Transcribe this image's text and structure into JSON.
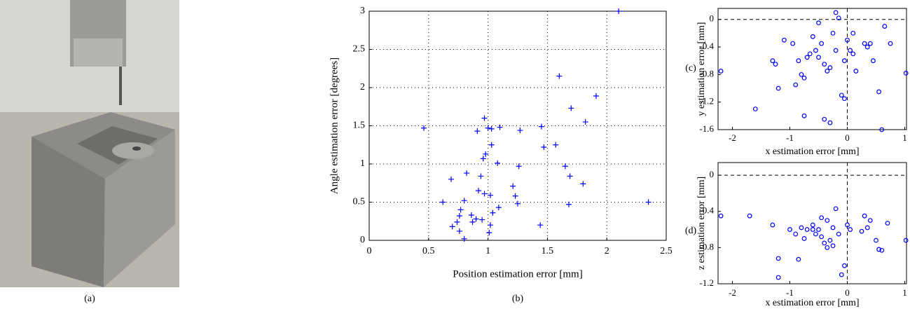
{
  "photo_caption": "(a)",
  "chart_data": [
    {
      "type": "scatter",
      "caption": "(b)",
      "xlabel": "Position estimation error [mm]",
      "ylabel": "Angle estimation error [degrees]",
      "marker": "+",
      "color": "#0000ff",
      "grid": true,
      "xlim": [
        0,
        2.5
      ],
      "ylim": [
        0,
        3
      ],
      "xticks": [
        0,
        0.5,
        1,
        1.5,
        2,
        2.5
      ],
      "yticks": [
        0,
        0.5,
        1,
        1.5,
        2,
        2.5,
        3
      ],
      "x": [
        2.1,
        0.46,
        0.97,
        0.91,
        1.0,
        1.03,
        1.1,
        1.27,
        1.45,
        1.6,
        1.91,
        1.7,
        1.82,
        1.47,
        1.57,
        1.03,
        0.98,
        0.96,
        0.82,
        0.94,
        1.08,
        1.26,
        1.65,
        1.69,
        1.8,
        1.21,
        1.23,
        1.25,
        0.69,
        0.62,
        0.8,
        0.92,
        0.97,
        1.02,
        1.68,
        2.35,
        1.09,
        1.04,
        0.9,
        0.95,
        0.86,
        0.76,
        0.77,
        0.74,
        0.7,
        0.76,
        0.87,
        1.02,
        1.01,
        1.44,
        0.8
      ],
      "values": [
        3.0,
        1.47,
        1.6,
        1.43,
        1.47,
        1.46,
        1.48,
        1.44,
        1.49,
        2.15,
        1.89,
        1.73,
        1.55,
        1.22,
        1.25,
        1.25,
        1.13,
        1.07,
        0.88,
        0.84,
        1.01,
        0.97,
        0.97,
        0.84,
        0.74,
        0.71,
        0.58,
        0.48,
        0.8,
        0.5,
        0.52,
        0.65,
        0.61,
        0.59,
        0.47,
        0.5,
        0.43,
        0.36,
        0.28,
        0.27,
        0.33,
        0.32,
        0.4,
        0.24,
        0.18,
        0.12,
        0.24,
        0.2,
        0.1,
        0.2,
        0.02
      ]
    },
    {
      "type": "scatter",
      "caption": "(c)",
      "xlabel": "x estimation error [mm]",
      "ylabel": "y estimation error [mm]",
      "marker": "o",
      "color": "#0000ff",
      "zero_lines": true,
      "xlim": [
        -2.25,
        1.03
      ],
      "ylim": [
        -1.6,
        0.16
      ],
      "xticks": [
        -2,
        -1,
        0,
        1
      ],
      "yticks": [
        -1.6,
        -1.2,
        -0.8,
        -0.4,
        0
      ],
      "x": [
        -2.2,
        -1.6,
        -1.3,
        -1.25,
        -1.2,
        -1.1,
        -0.9,
        -0.85,
        -0.8,
        -0.75,
        -0.7,
        -0.65,
        -0.6,
        -0.55,
        -0.5,
        -0.45,
        -0.4,
        -0.35,
        -0.3,
        -0.25,
        -0.2,
        -0.15,
        -0.1,
        -0.05,
        0,
        0.05,
        0.1,
        0.15,
        0.3,
        0.35,
        0.45,
        0.55,
        0.65,
        0.75,
        1.02,
        -0.4,
        -0.3,
        0.6,
        -0.5,
        -0.75,
        -0.05,
        -0.2,
        0.4,
        -0.95,
        0.1
      ],
      "values": [
        -0.75,
        -1.3,
        -0.6,
        -0.65,
        -1.0,
        -0.3,
        -0.95,
        -0.6,
        -0.8,
        -1.4,
        -0.55,
        -0.5,
        -0.25,
        -0.45,
        -0.05,
        -0.35,
        -0.65,
        -0.75,
        -0.7,
        -0.2,
        0.1,
        0.02,
        -1.1,
        -0.6,
        -0.3,
        -0.45,
        -0.5,
        -0.75,
        -0.35,
        -0.4,
        -0.6,
        -1.05,
        -0.1,
        -0.35,
        -0.78,
        -1.45,
        -1.5,
        -1.6,
        -0.55,
        -0.85,
        -1.15,
        -0.45,
        -0.35,
        -0.35,
        -0.2
      ]
    },
    {
      "type": "scatter",
      "caption": "(d)",
      "xlabel": "x estimation error [mm]",
      "ylabel": "z estimation error [mm]",
      "marker": "o",
      "color": "#0000ff",
      "zero_lines": true,
      "xlim": [
        -2.25,
        1.03
      ],
      "ylim": [
        -1.2,
        0.14
      ],
      "xticks": [
        -2,
        -1,
        0,
        1
      ],
      "yticks": [
        -1.2,
        -0.8,
        -0.4,
        0
      ],
      "x": [
        -2.2,
        -1.7,
        -1.3,
        -1.2,
        -1.2,
        -1.0,
        -0.85,
        -0.8,
        -0.75,
        -0.7,
        -0.6,
        -0.55,
        -0.5,
        -0.45,
        -0.4,
        -0.35,
        -0.3,
        -0.25,
        -0.2,
        -0.15,
        -0.1,
        -0.05,
        0,
        0.05,
        0.25,
        0.3,
        0.4,
        0.5,
        0.55,
        0.6,
        0.7,
        1.02,
        -0.6,
        -0.45,
        -0.9,
        -0.35,
        0.35,
        -0.25
      ],
      "values": [
        -0.45,
        -0.45,
        -0.55,
        -0.92,
        -1.13,
        -0.6,
        -0.93,
        -0.58,
        -0.7,
        -0.6,
        -0.55,
        -0.65,
        -0.6,
        -0.47,
        -0.75,
        -0.5,
        -0.72,
        -0.78,
        -0.37,
        -0.65,
        -1.1,
        -1.0,
        -0.55,
        -0.6,
        -0.62,
        -0.45,
        -0.5,
        -0.72,
        -0.82,
        -0.83,
        -0.53,
        -0.72,
        -0.6,
        -0.68,
        -0.65,
        -0.8,
        -0.58,
        -0.58
      ]
    }
  ]
}
